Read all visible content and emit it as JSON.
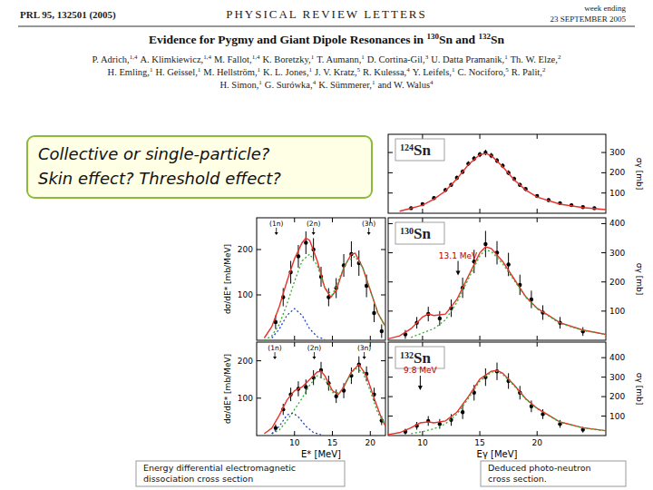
{
  "header": {
    "journal_ref": "PRL 95, 132501 (2005)",
    "journal": "PHYSICAL REVIEW LETTERS",
    "week_line": "week ending",
    "date": "23 SEPTEMBER 2005"
  },
  "paper": {
    "title": [
      {
        "text": "Evidence for Pygmy and Giant Dipole Resonances in "
      },
      {
        "text": "130",
        "sup": true
      },
      {
        "text": "Sn and "
      },
      {
        "text": "132",
        "sup": true
      },
      {
        "text": "Sn"
      }
    ],
    "authors": [
      [
        [
          "P. Adrich,",
          "1,4"
        ],
        [
          "A. Klimkiewicz,",
          "1,4"
        ],
        [
          "M. Fallot,",
          "1,4"
        ],
        [
          "K. Boretzky,",
          "1"
        ],
        [
          "T. Aumann,",
          "1"
        ],
        [
          "D. Cortina-Gil,",
          "3"
        ],
        [
          "U. Datta Pramanik,",
          "1"
        ],
        [
          "Th. W. Elze,",
          "2"
        ]
      ],
      [
        [
          "H. Emling,",
          "1"
        ],
        [
          "H. Geissel,",
          "1"
        ],
        [
          "M. Hellström,",
          "1"
        ],
        [
          "K. L. Jones,",
          "1"
        ],
        [
          "J. V. Kratz,",
          "5"
        ],
        [
          "R. Kulessa,",
          "4"
        ],
        [
          "Y. Leifels,",
          "1"
        ],
        [
          "C. Nociforo,",
          "5"
        ],
        [
          "R. Palit,",
          "2"
        ]
      ],
      [
        [
          "H. Simon,",
          "1"
        ],
        [
          "G. Surówka,",
          "4"
        ],
        [
          "K. Sümmerer,",
          "1"
        ],
        [
          "and W. Walus",
          "4"
        ]
      ]
    ]
  },
  "question_box": {
    "lines": [
      "Collective or single-particle?",
      "Skin effect? Threshold effect?"
    ]
  },
  "captions": [
    {
      "lines": [
        "Energy differential electromagnetic",
        "dissociation cross section"
      ]
    },
    {
      "lines": [
        "Deduced photo-neutron",
        "cross section."
      ]
    }
  ],
  "chart_data": [
    {
      "type": "line",
      "label_mass": "124",
      "label_element": "Sn",
      "y_label": "σγ [mb]",
      "xlim": [
        7,
        26
      ],
      "ylim": [
        0,
        390
      ],
      "xticks": [
        10,
        15,
        20
      ],
      "yticks": [
        100,
        200,
        300
      ],
      "tick_labels": "y",
      "series": [
        {
          "type": "scatter",
          "color": "#000000",
          "marker": "circle",
          "x": [
            9,
            10,
            11,
            12,
            12.5,
            13,
            13.5,
            14,
            14.5,
            15,
            15.5,
            16,
            16.5,
            17,
            17.5,
            18,
            18.5,
            19,
            20,
            21,
            22,
            23,
            24,
            25
          ],
          "values": [
            25,
            45,
            75,
            115,
            140,
            175,
            205,
            245,
            270,
            290,
            300,
            285,
            260,
            235,
            200,
            170,
            140,
            120,
            85,
            65,
            50,
            40,
            30,
            25
          ],
          "errors": [
            8,
            8,
            9,
            10,
            10,
            11,
            12,
            12,
            13,
            13,
            14,
            13,
            13,
            12,
            12,
            11,
            10,
            10,
            9,
            9,
            8,
            8,
            8,
            8
          ]
        },
        {
          "type": "line",
          "color": "#e8312a",
          "line_style": "solid",
          "x": [
            8,
            10,
            11,
            12,
            13,
            14,
            15,
            15.5,
            16,
            17,
            18,
            19,
            20,
            22,
            24,
            26
          ],
          "values": [
            10,
            40,
            70,
            110,
            170,
            240,
            290,
            295,
            285,
            230,
            165,
            115,
            80,
            45,
            28,
            18
          ]
        }
      ]
    },
    {
      "type": "line",
      "y_label": "dσ/dE* [mb/MeV]",
      "xlim": [
        5,
        22
      ],
      "ylim": [
        0,
        270
      ],
      "xticks": [
        10,
        15,
        20
      ],
      "yticks": [
        100,
        200
      ],
      "tick_labels": "y",
      "channel_labels": [
        {
          "text": "(1n)",
          "x": 7.6
        },
        {
          "text": "(2n)",
          "x": 12.5
        },
        {
          "text": "(3n)",
          "x": 19.8
        }
      ],
      "series": [
        {
          "type": "scatter",
          "color": "#000000",
          "marker": "circle",
          "x": [
            7.5,
            8.5,
            9.5,
            10.5,
            11.5,
            12.5,
            13.5,
            14.5,
            15.5,
            16.5,
            17.5,
            18.5,
            19.5,
            20.5,
            21.5
          ],
          "values": [
            40,
            95,
            150,
            185,
            215,
            200,
            140,
            95,
            115,
            165,
            190,
            170,
            120,
            60,
            20
          ],
          "errors": [
            15,
            20,
            25,
            25,
            25,
            25,
            22,
            20,
            22,
            25,
            28,
            28,
            25,
            20,
            15
          ]
        },
        {
          "type": "line",
          "color": "#e8312a",
          "line_style": "solid",
          "x": [
            6,
            7,
            8,
            9,
            10,
            11,
            11.5,
            12,
            13,
            14,
            14.8,
            15.5,
            16.5,
            17.5,
            18,
            19,
            20,
            21,
            22
          ],
          "values": [
            5,
            30,
            75,
            130,
            180,
            215,
            225,
            220,
            175,
            115,
            95,
            110,
            160,
            190,
            192,
            160,
            110,
            60,
            30
          ]
        },
        {
          "type": "line",
          "color": "#33aa33",
          "line_style": "dotted",
          "x": [
            6,
            7,
            8,
            9,
            10,
            11,
            12,
            13,
            14,
            15,
            16,
            17,
            18,
            19,
            20,
            21,
            22
          ],
          "values": [
            0,
            10,
            35,
            80,
            130,
            175,
            190,
            165,
            115,
            100,
            140,
            175,
            185,
            160,
            110,
            60,
            30
          ]
        },
        {
          "type": "line",
          "color": "#2040d0",
          "line_style": "dotted",
          "x": [
            7,
            8,
            9,
            10,
            11,
            12,
            13,
            14
          ],
          "values": [
            5,
            25,
            55,
            70,
            55,
            25,
            8,
            2
          ]
        }
      ]
    },
    {
      "type": "line",
      "label_mass": "130",
      "label_element": "Sn",
      "y_label": "σγ [mb]",
      "xlim": [
        7,
        26
      ],
      "ylim": [
        0,
        420
      ],
      "xticks": [
        10,
        15,
        20
      ],
      "yticks": [
        100,
        200,
        300,
        400
      ],
      "tick_labels": "y",
      "energy_marker": {
        "text": "13.1 MeV",
        "x": 13.1
      },
      "series": [
        {
          "type": "scatter",
          "color": "#000000",
          "marker": "circle",
          "x": [
            8.5,
            9.5,
            10.5,
            11.5,
            12.5,
            13.5,
            14.5,
            15.5,
            16.5,
            17.5,
            18.5,
            19.5,
            20.5,
            22,
            24
          ],
          "values": [
            20,
            60,
            90,
            75,
            110,
            180,
            270,
            330,
            300,
            260,
            190,
            140,
            95,
            60,
            30
          ],
          "errors": [
            15,
            20,
            25,
            25,
            30,
            35,
            40,
            45,
            40,
            40,
            35,
            30,
            25,
            20,
            15
          ]
        },
        {
          "type": "line",
          "color": "#e8312a",
          "line_style": "solid",
          "x": [
            7,
            8,
            9,
            10,
            10.5,
            11,
            12,
            13,
            14,
            15,
            15.5,
            16,
            17,
            18,
            19,
            20,
            22,
            24,
            26
          ],
          "values": [
            5,
            15,
            40,
            80,
            90,
            85,
            90,
            140,
            220,
            300,
            320,
            315,
            270,
            210,
            150,
            110,
            60,
            35,
            20
          ]
        },
        {
          "type": "line",
          "color": "#33aa33",
          "line_style": "dotted",
          "x": [
            9,
            10,
            11,
            12,
            13,
            14,
            15,
            15.5,
            16,
            17,
            18,
            19,
            20,
            22,
            24,
            26
          ],
          "values": [
            10,
            25,
            40,
            70,
            130,
            210,
            290,
            310,
            305,
            262,
            205,
            148,
            108,
            58,
            34,
            20
          ]
        }
      ]
    },
    {
      "type": "line",
      "y_label": "dσ/dE* [mb/MeV]",
      "x_label": "E* [MeV]",
      "xlim": [
        5,
        22
      ],
      "ylim": [
        0,
        250
      ],
      "xticks": [
        10,
        15,
        20
      ],
      "yticks": [
        100,
        200
      ],
      "channel_labels": [
        {
          "text": "(1n)",
          "x": 7.4
        },
        {
          "text": "(2n)",
          "x": 12.6
        },
        {
          "text": "(3n)",
          "x": 19.2
        }
      ],
      "series": [
        {
          "type": "scatter",
          "color": "#000000",
          "marker": "circle",
          "x": [
            7.5,
            8.5,
            9.5,
            10.5,
            11.5,
            12.5,
            13.5,
            14.5,
            15.5,
            16.5,
            17.5,
            18.5,
            19.5,
            20.5,
            21.5
          ],
          "values": [
            20,
            70,
            110,
            125,
            130,
            155,
            175,
            140,
            105,
            120,
            160,
            190,
            165,
            110,
            40
          ],
          "errors": [
            10,
            15,
            18,
            20,
            20,
            20,
            22,
            20,
            18,
            20,
            22,
            22,
            20,
            18,
            12
          ]
        },
        {
          "type": "line",
          "color": "#e8312a",
          "line_style": "solid",
          "x": [
            6,
            7,
            8,
            9,
            10,
            11,
            12,
            13,
            13.5,
            14,
            15,
            15.8,
            16.5,
            17.5,
            18.5,
            19.5,
            20.5,
            21.5,
            22
          ],
          "values": [
            5,
            20,
            55,
            95,
            120,
            130,
            150,
            170,
            172,
            160,
            120,
            110,
            130,
            170,
            190,
            160,
            100,
            45,
            25
          ]
        },
        {
          "type": "line",
          "color": "#33aa33",
          "line_style": "dotted",
          "x": [
            7,
            8,
            9,
            10,
            11,
            12,
            13,
            14,
            15,
            16,
            17,
            18,
            19,
            20,
            21,
            22
          ],
          "values": [
            5,
            15,
            40,
            70,
            100,
            135,
            160,
            150,
            115,
            115,
            150,
            180,
            170,
            120,
            60,
            30
          ]
        },
        {
          "type": "line",
          "color": "#2040d0",
          "line_style": "dotted",
          "x": [
            7,
            8,
            9,
            9.8,
            10.5,
            11.5,
            12.5,
            13.5
          ],
          "values": [
            5,
            25,
            55,
            60,
            50,
            25,
            8,
            2
          ]
        }
      ]
    },
    {
      "type": "line",
      "label_mass": "132",
      "label_element": "Sn",
      "y_label": "σγ [mb]",
      "x_label": "Eγ [MeV]",
      "xlim": [
        7,
        26
      ],
      "ylim": [
        0,
        480
      ],
      "xticks": [
        10,
        15,
        20
      ],
      "yticks": [
        100,
        200,
        300,
        400
      ],
      "energy_marker": {
        "text": "9.8 MeV",
        "x": 9.8
      },
      "series": [
        {
          "type": "scatter",
          "color": "#000000",
          "marker": "circle",
          "x": [
            8.5,
            9.5,
            10.5,
            11.5,
            12.5,
            13.5,
            14.5,
            15.5,
            16.5,
            17.5,
            18.5,
            19.5,
            20.5,
            22,
            24
          ],
          "values": [
            20,
            50,
            75,
            60,
            80,
            120,
            220,
            300,
            330,
            280,
            220,
            150,
            110,
            60,
            30
          ],
          "errors": [
            15,
            20,
            25,
            25,
            30,
            35,
            40,
            45,
            45,
            40,
            35,
            30,
            25,
            20,
            15
          ]
        },
        {
          "type": "line",
          "color": "#e8312a",
          "line_style": "solid",
          "x": [
            7,
            8,
            9,
            9.8,
            10.5,
            11,
            12,
            13,
            14,
            15,
            16,
            16.5,
            17,
            18,
            19,
            20,
            22,
            24,
            26
          ],
          "values": [
            5,
            15,
            40,
            65,
            70,
            65,
            75,
            120,
            200,
            290,
            330,
            335,
            320,
            260,
            190,
            140,
            70,
            40,
            25
          ]
        },
        {
          "type": "line",
          "color": "#33aa33",
          "line_style": "dotted",
          "x": [
            9,
            10,
            11,
            12,
            13,
            14,
            15,
            16,
            16.5,
            17,
            18,
            19,
            20,
            22,
            24,
            26
          ],
          "values": [
            10,
            20,
            35,
            60,
            110,
            190,
            280,
            325,
            330,
            315,
            255,
            187,
            138,
            68,
            39,
            24
          ]
        }
      ]
    }
  ]
}
